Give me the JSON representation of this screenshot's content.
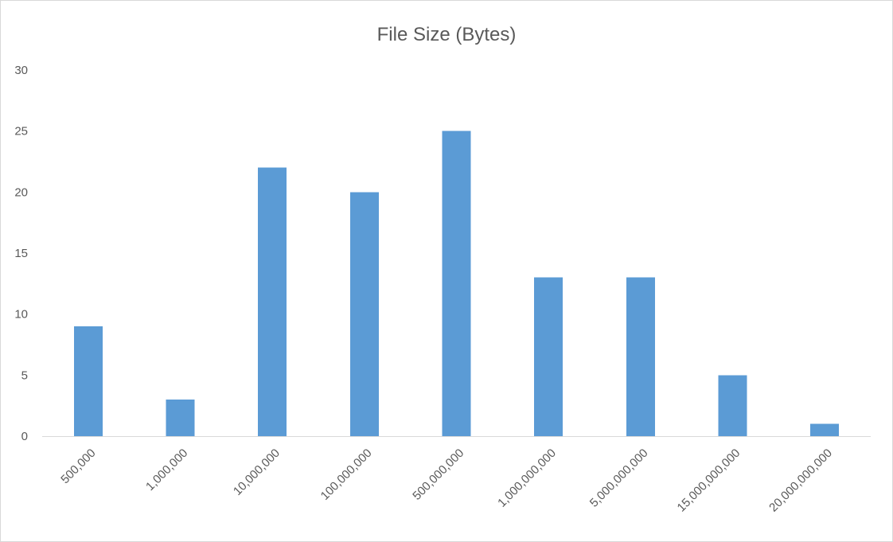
{
  "chart_data": {
    "type": "bar",
    "title": "File Size (Bytes)",
    "categories": [
      "500,000",
      "1,000,000",
      "10,000,000",
      "100,000,000",
      "500,000,000",
      "1,000,000,000",
      "5,000,000,000",
      "15,000,000,000",
      "20,000,000,000"
    ],
    "values": [
      9,
      3,
      22,
      20,
      25,
      13,
      13,
      5,
      1
    ],
    "ylim": [
      0,
      30
    ],
    "yticks": [
      0,
      5,
      10,
      15,
      20,
      25,
      30
    ],
    "grid": false,
    "legend": "none",
    "bar_color": "#5B9BD5"
  }
}
